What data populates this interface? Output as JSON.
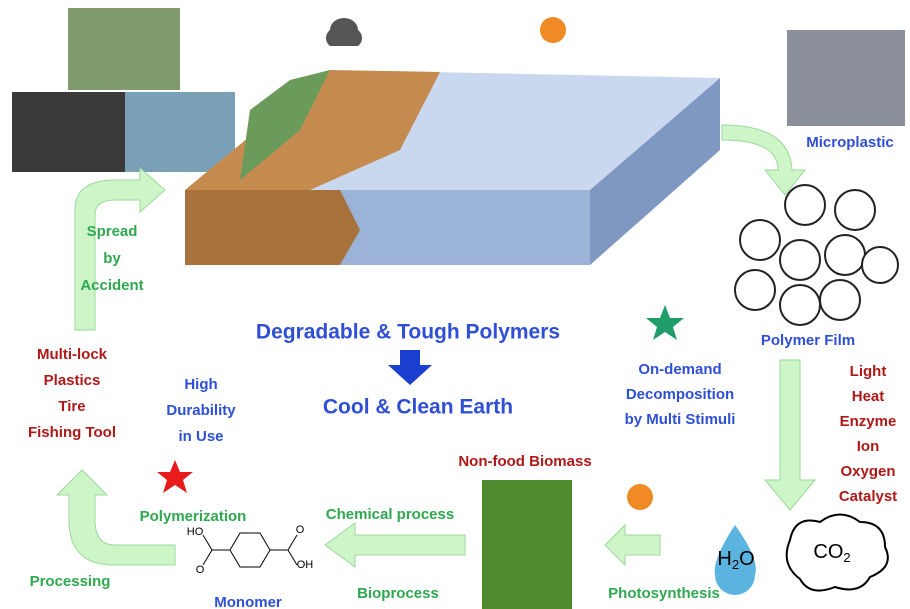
{
  "diagram": {
    "microplastic": "Microplastic",
    "polymer_film": "Polymer Film",
    "stimuli": [
      "Light",
      "Heat",
      "Enzyme",
      "Ion",
      "Oxygen",
      "Catalyst"
    ],
    "on_demand": [
      "On-demand",
      "Decomposition",
      "by Multi Stimuli"
    ],
    "headline": "Degradable & Tough Polymers",
    "subline": "Cool & Clean Earth",
    "spread": [
      "Spread",
      "by",
      "Accident"
    ],
    "products": [
      "Multi-lock",
      "Plastics",
      "Tire",
      "Fishing Tool"
    ],
    "durability": [
      "High",
      "Durability",
      "in Use"
    ],
    "biomass": "Non-food Biomass",
    "chemical": "Chemical process",
    "bioprocess": "Bioprocess",
    "polymerization": "Polymerization",
    "processing": "Processing",
    "monomer": "Monomer",
    "photosynthesis": "Photosynthesis",
    "water": {
      "a": "H",
      "sub": "2",
      "b": "O"
    },
    "co2": {
      "a": "CO",
      "sub": "2"
    },
    "structure": {
      "left_oh": "HO",
      "left_o": "O",
      "right_oh": "OH",
      "right_o": "O"
    }
  }
}
